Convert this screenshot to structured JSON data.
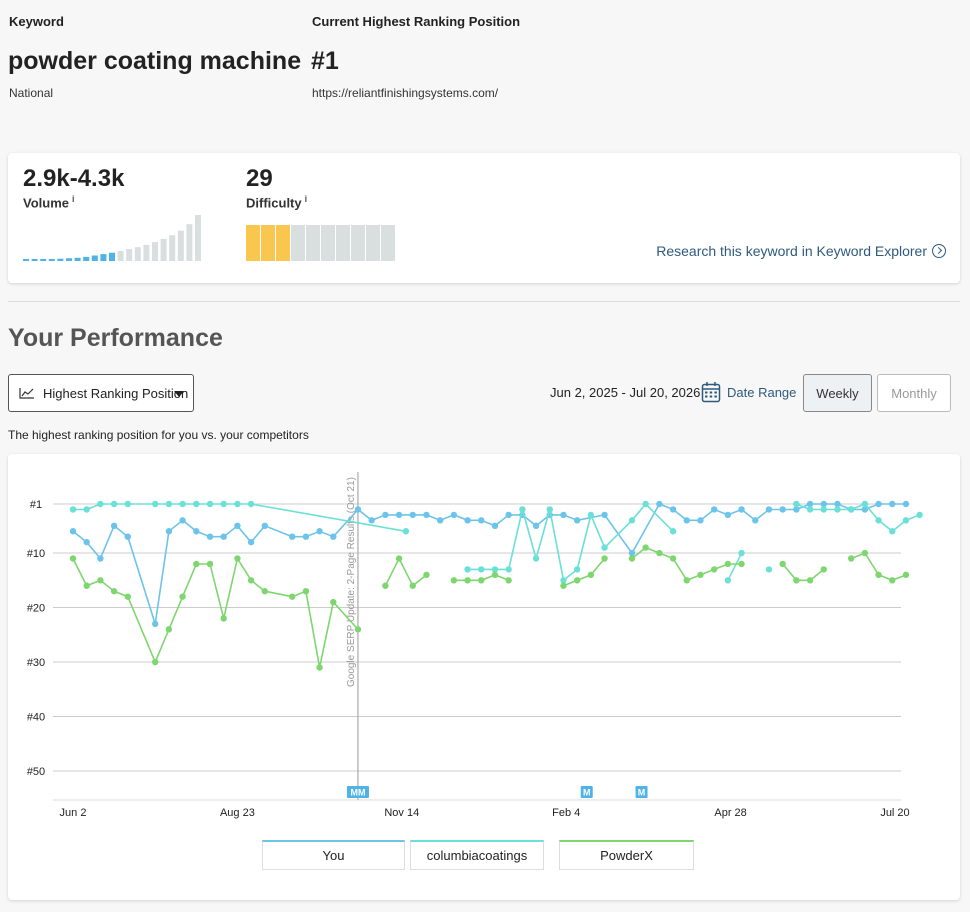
{
  "header": {
    "keyword_label": "Keyword",
    "keyword": "powder coating machine",
    "location": "National",
    "position_label": "Current Highest Ranking Position",
    "position": "#1",
    "url": "https://reliantfinishingsystems.com/"
  },
  "metrics": {
    "volume_value": "2.9k-4.3k",
    "volume_label": "Volume",
    "difficulty_value": "29",
    "difficulty_label": "Difficulty",
    "info_glyph": "i",
    "volume_bars": [
      0.03,
      0.03,
      0.03,
      0.04,
      0.05,
      0.06,
      0.07,
      0.09,
      0.12,
      0.15,
      0.18,
      0.22,
      0.26,
      0.3,
      0.35,
      0.41,
      0.48,
      0.56,
      0.66,
      0.8,
      1.0
    ],
    "volume_highlight_count": 11,
    "difficulty_segments_total": 10,
    "difficulty_filled": 3,
    "research_link": "Research this keyword in Keyword Explorer"
  },
  "performance": {
    "title": "Your Performance",
    "dropdown_label": "Highest Ranking Position",
    "date_range_text": "Jun 2, 2025 - Jul 20, 2026",
    "date_range_button": "Date Range",
    "weekly_label": "Weekly",
    "monthly_label": "Monthly",
    "description": "The highest ranking position for you vs. your competitors"
  },
  "colors": {
    "you": "#6cc4ea",
    "columbia": "#6be0d6",
    "powderx": "#7ed66f",
    "volume_bar": "#4fb3e8",
    "volume_bar_gray": "#d9dede",
    "difficulty_fill": "#f9c74f",
    "difficulty_gray": "#d9dede",
    "accent_link": "#2e5a7d"
  },
  "chart_data": {
    "type": "line",
    "y_axis": {
      "reversed": true,
      "ylim": [
        1,
        55
      ],
      "ticks": [
        "#1",
        "#10",
        "#20",
        "#30",
        "#40",
        "#50"
      ],
      "tick_values": [
        1,
        10,
        20,
        30,
        40,
        50
      ]
    },
    "x_axis": {
      "tick_labels": [
        "Jun 2",
        "Aug 23",
        "Nov 14",
        "Feb 4",
        "Apr 28",
        "Jul 20"
      ],
      "tick_weeks": [
        0,
        12,
        24,
        36,
        48,
        60
      ]
    },
    "annotation": {
      "week": 20.8,
      "text": "Google SERP Update: 2-Page Results (Oct 21)"
    },
    "markers": [
      {
        "week": 20.8,
        "label": "M",
        "type": "double"
      },
      {
        "week": 37.5,
        "label": "M",
        "type": "single"
      },
      {
        "week": 41.5,
        "label": "M",
        "type": "single"
      }
    ],
    "series": [
      {
        "name": "You",
        "color": "#6cc4ea",
        "points": [
          [
            0,
            6
          ],
          [
            1,
            8
          ],
          [
            2,
            11
          ],
          [
            3,
            5
          ],
          [
            4,
            7
          ],
          [
            6,
            23
          ],
          [
            7,
            6
          ],
          [
            8,
            4
          ],
          [
            9,
            6
          ],
          [
            10,
            7
          ],
          [
            11,
            7
          ],
          [
            12,
            5
          ],
          [
            13,
            8
          ],
          [
            14,
            5
          ],
          [
            16,
            7
          ],
          [
            17,
            7
          ],
          [
            18,
            6
          ],
          [
            19,
            7
          ],
          [
            20.8,
            2
          ],
          [
            21.8,
            4
          ],
          [
            22.8,
            3
          ],
          [
            23.8,
            3
          ],
          [
            24.8,
            3
          ],
          [
            25.8,
            3
          ],
          [
            26.8,
            4
          ],
          [
            27.8,
            3
          ],
          [
            28.8,
            4
          ],
          [
            29.8,
            4
          ],
          [
            30.8,
            5
          ],
          [
            31.8,
            3
          ],
          [
            32.8,
            3
          ],
          [
            33.8,
            5
          ],
          [
            34.8,
            3
          ],
          [
            35.8,
            3
          ],
          [
            36.8,
            4
          ],
          [
            38.8,
            3
          ],
          [
            40.8,
            10
          ],
          [
            42.8,
            1
          ],
          [
            43.8,
            2
          ],
          [
            44.8,
            4
          ],
          [
            45.8,
            4
          ],
          [
            46.8,
            2
          ],
          [
            47.8,
            3
          ],
          [
            48.8,
            2
          ],
          [
            49.8,
            4
          ],
          [
            50.8,
            2
          ],
          [
            51.8,
            2
          ],
          [
            52.8,
            2
          ],
          [
            53.8,
            1
          ],
          [
            54.8,
            1
          ],
          [
            55.8,
            1
          ],
          [
            56.8,
            2
          ],
          [
            57.8,
            2
          ],
          [
            58.8,
            1
          ],
          [
            59.8,
            1
          ],
          [
            60.8,
            1
          ]
        ]
      },
      {
        "name": "columbiacoatings",
        "color": "#6be0d6",
        "points": [
          [
            0,
            2
          ],
          [
            1,
            2
          ],
          [
            2,
            1
          ],
          [
            3,
            1
          ],
          [
            4,
            1
          ],
          [
            6,
            1
          ],
          [
            7,
            1
          ],
          [
            8,
            1
          ],
          [
            9,
            1
          ],
          [
            10,
            1
          ],
          [
            11,
            1
          ],
          [
            12,
            1
          ],
          [
            13,
            1
          ],
          [
            24.3,
            6
          ],
          null,
          [
            28.8,
            13
          ],
          [
            29.8,
            13
          ],
          [
            30.8,
            13
          ],
          [
            31.8,
            13
          ],
          [
            32.8,
            2
          ],
          [
            33.8,
            11
          ],
          [
            34.8,
            2
          ],
          [
            35.8,
            15
          ],
          [
            36.8,
            13
          ],
          [
            37.8,
            3
          ],
          [
            38.8,
            9
          ],
          [
            40.8,
            4
          ],
          [
            41.8,
            1
          ],
          [
            43.8,
            6
          ],
          null,
          [
            47.8,
            15
          ],
          [
            48.8,
            10
          ],
          null,
          [
            50.8,
            13
          ],
          null,
          [
            52.8,
            1
          ],
          [
            53.8,
            2
          ],
          [
            54.8,
            2
          ],
          [
            55.8,
            2
          ],
          [
            56.8,
            2
          ],
          [
            57.8,
            1
          ],
          [
            58.8,
            4
          ],
          [
            59.8,
            6
          ],
          [
            60.8,
            4
          ],
          [
            61.8,
            3
          ]
        ]
      },
      {
        "name": "PowderX",
        "color": "#7ed66f",
        "points": [
          [
            0,
            11
          ],
          [
            1,
            16
          ],
          [
            2,
            15
          ],
          [
            3,
            17
          ],
          [
            4,
            18
          ],
          [
            6,
            30
          ],
          [
            7,
            24
          ],
          [
            8,
            18
          ],
          [
            9,
            12
          ],
          [
            10,
            12
          ],
          [
            11,
            22
          ],
          [
            12,
            11
          ],
          [
            13,
            15
          ],
          [
            14,
            17
          ],
          [
            16,
            18
          ],
          [
            17,
            17
          ],
          [
            18,
            31
          ],
          [
            19,
            19
          ],
          [
            20.8,
            24
          ],
          null,
          [
            22.8,
            16
          ],
          [
            23.8,
            11
          ],
          [
            24.8,
            16
          ],
          [
            25.8,
            14
          ],
          null,
          [
            27.8,
            15
          ],
          [
            28.8,
            15
          ],
          [
            29.8,
            15
          ],
          [
            30.8,
            14
          ],
          [
            31.8,
            15
          ],
          null,
          [
            35.8,
            16
          ],
          [
            36.8,
            15
          ],
          [
            37.8,
            14
          ],
          [
            38.8,
            11
          ],
          null,
          [
            40.8,
            11
          ],
          [
            41.8,
            9
          ],
          [
            42.8,
            10
          ],
          [
            43.8,
            11
          ],
          [
            44.8,
            15
          ],
          [
            45.8,
            14
          ],
          [
            46.8,
            13
          ],
          [
            47.8,
            12
          ],
          [
            48.8,
            12
          ],
          null,
          [
            51.8,
            12
          ],
          [
            52.8,
            15
          ],
          [
            53.8,
            15
          ],
          [
            54.8,
            13
          ],
          null,
          [
            56.8,
            11
          ],
          [
            57.8,
            10
          ],
          [
            58.8,
            14
          ],
          [
            59.8,
            15
          ],
          [
            60.8,
            14
          ]
        ]
      }
    ],
    "legend": [
      {
        "name": "You",
        "color": "#6cc4ea"
      },
      {
        "name": "columbiacoatings",
        "color": "#6be0d6"
      },
      {
        "name": "PowderX",
        "color": "#7ed66f"
      }
    ],
    "grid": true,
    "legend_position": "bottom"
  }
}
